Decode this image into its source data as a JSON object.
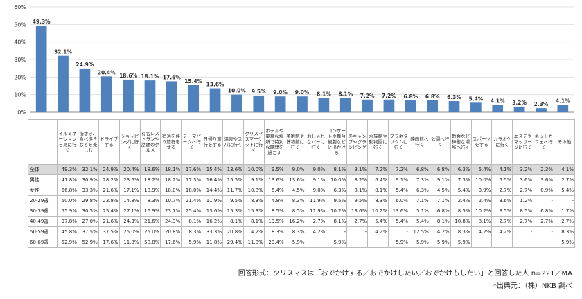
{
  "chart_data": {
    "type": "bar",
    "ylim": [
      0,
      60
    ],
    "yticks": [
      "0%",
      "10%",
      "20%",
      "30%",
      "40%",
      "50%",
      "60%"
    ],
    "bar_color": "#4f81bd",
    "categories": [
      "イルミネーションを見に行く",
      "街歩き、食べ歩きなどを楽しむ",
      "ドライブする",
      "ショッピングに行く",
      "有名レストランや話題のグルメ",
      "宿泊を伴う旅行をする",
      "テーマパークへ行く",
      "日帰り旅行をする",
      "温泉やスパに行く",
      "クリスマスマーケットに行く",
      "ホテルや豪華な場所で特別な時間を過ごす",
      "美術館や博物館に行く",
      "おしゃれなバーに行く",
      "コンサートや舞台観劇などに出かける",
      "冬キャンプやグランピング",
      "水族館や動物園に行く",
      "プラネタリウムに行く",
      "映画館へ行く",
      "公園へ行く",
      "教会など神聖な場所へ行く",
      "スポーツをする",
      "カラオケに行く",
      "エステやマッサージに行く",
      "ネットカフェへ行く",
      "その他"
    ],
    "values": [
      49.3,
      32.1,
      24.9,
      20.4,
      18.6,
      18.1,
      17.6,
      15.4,
      13.6,
      10.0,
      9.5,
      9.0,
      9.0,
      8.1,
      8.1,
      7.2,
      7.2,
      6.8,
      6.8,
      6.3,
      5.4,
      4.1,
      3.2,
      2.3,
      4.1
    ],
    "value_labels": [
      "49.3%",
      "32.1%",
      "24.9%",
      "20.4%",
      "18.6%",
      "18.1%",
      "17.6%",
      "15.4%",
      "13.6%",
      "10.0%",
      "9.5%",
      "9.0%",
      "9.0%",
      "8.1%",
      "8.1%",
      "7.2%",
      "7.2%",
      "6.8%",
      "6.8%",
      "6.3%",
      "5.4%",
      "4.1%",
      "3.2%",
      "2.3%",
      "4.1%"
    ]
  },
  "table": {
    "rows": [
      {
        "label": "全体",
        "cells": [
          "49.3%",
          "32.1%",
          "24.9%",
          "20.4%",
          "18.6%",
          "18.1%",
          "17.6%",
          "15.4%",
          "13.6%",
          "10.0%",
          "9.5%",
          "9.0%",
          "9.0%",
          "8.1%",
          "8.1%",
          "7.2%",
          "7.2%",
          "6.8%",
          "6.8%",
          "6.3%",
          "5.4%",
          "4.1%",
          "3.2%",
          "2.3%",
          "4.1%"
        ]
      },
      {
        "label": "男性",
        "cells": [
          "41.8%",
          "30.9%",
          "28.2%",
          "23.6%",
          "18.2%",
          "18.2%",
          "17.3%",
          "16.4%",
          "15.5%",
          "9.1%",
          "13.6%",
          "13.6%",
          "9.1%",
          "10.0%",
          "8.2%",
          "6.4%",
          "9.1%",
          "7.3%",
          "9.1%",
          "7.3%",
          "10.0%",
          "5.5%",
          "3.6%",
          "3.6%",
          "2.7%"
        ]
      },
      {
        "label": "女性",
        "cells": [
          "56.8%",
          "33.3%",
          "21.6%",
          "17.1%",
          "18.9%",
          "18.0%",
          "18.0%",
          "14.4%",
          "11.7%",
          "10.8%",
          "5.4%",
          "4.5%",
          "9.0%",
          "6.3%",
          "8.1%",
          "8.1%",
          "5.4%",
          "6.3%",
          "4.5%",
          "5.4%",
          "0.9%",
          "2.7%",
          "2.7%",
          "0.9%",
          "5.4%"
        ]
      },
      {
        "label": "20-29歳",
        "cells": [
          "50.0%",
          "29.8%",
          "23.8%",
          "14.3%",
          "8.3%",
          "10.7%",
          "21.4%",
          "11.9%",
          "9.5%",
          "8.3%",
          "4.8%",
          "8.3%",
          "11.9%",
          "9.5%",
          "9.5%",
          "8.3%",
          "6.0%",
          "7.1%",
          "7.1%",
          "2.4%",
          "2.4%",
          "3.6%",
          "1.2%",
          "-",
          "-"
        ]
      },
      {
        "label": "30-39歳",
        "cells": [
          "55.9%",
          "30.5%",
          "25.4%",
          "27.1%",
          "16.9%",
          "23.7%",
          "25.4%",
          "13.6%",
          "15.3%",
          "15.3%",
          "8.5%",
          "8.5%",
          "11.9%",
          "10.2%",
          "13.6%",
          "10.2%",
          "13.6%",
          "5.1%",
          "6.8%",
          "8.5%",
          "10.2%",
          "8.5%",
          "8.5%",
          "6.8%",
          "1.7%"
        ]
      },
      {
        "label": "40-49歳",
        "cells": [
          "37.8%",
          "27.0%",
          "21.6%",
          "24.3%",
          "21.6%",
          "24.3%",
          "8.1%",
          "16.2%",
          "8.1%",
          "8.1%",
          "13.5%",
          "16.2%",
          "2.7%",
          "8.1%",
          "2.7%",
          "5.4%",
          "5.4%",
          "5.4%",
          "8.1%",
          "10.8%",
          "8.1%",
          "2.7%",
          "2.7%",
          "2.7%",
          "2.7%"
        ]
      },
      {
        "label": "50-59歳",
        "cells": [
          "45.8%",
          "37.5%",
          "37.5%",
          "25.0%",
          "25.0%",
          "20.8%",
          "8.3%",
          "33.3%",
          "20.8%",
          "4.2%",
          "8.3%",
          "8.3%",
          "4.2%",
          "-",
          "-",
          "4.2%",
          "-",
          "12.5%",
          "4.2%",
          "8.3%",
          "4.2%",
          "4.2%",
          "-",
          "-",
          "8.3%"
        ]
      },
      {
        "label": "60-69歳",
        "cells": [
          "52.9%",
          "52.9%",
          "17.6%",
          "11.8%",
          "58.8%",
          "17.6%",
          "5.9%",
          "11.8%",
          "29.4%",
          "11.8%",
          "29.4%",
          "5.9%",
          "-",
          "5.9%",
          "-",
          "-",
          "5.9%",
          "5.9%",
          "5.9%",
          "5.9%",
          "-",
          "-",
          "-",
          "-",
          "5.9%"
        ]
      }
    ]
  },
  "footer": {
    "method": "回答形式：クリスマスは「おでかけする／おでかけしたい／おでかけもしたい」と回答した人 n=221／MA",
    "source": "*出典元：（株）NKB 調べ"
  }
}
